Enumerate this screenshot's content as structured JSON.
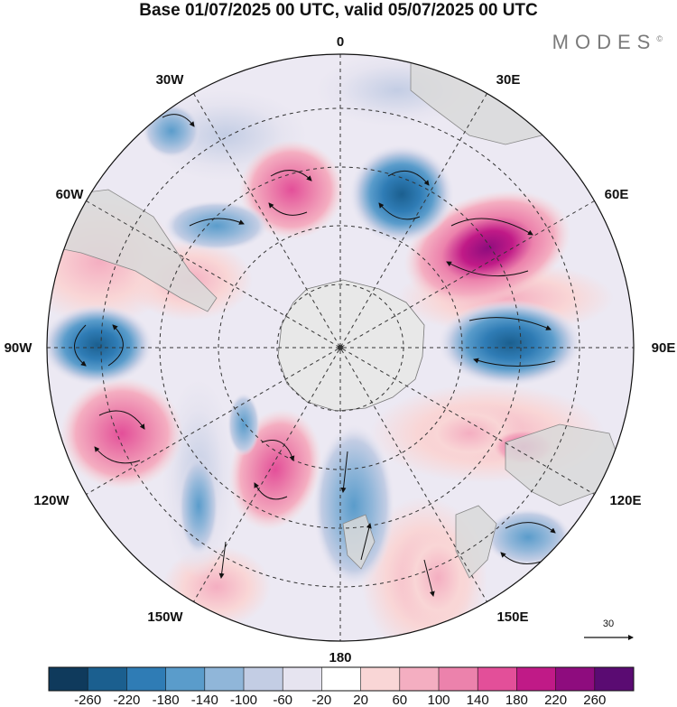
{
  "title": "Base 01/07/2025 00 UTC, valid 05/07/2025 00 UTC",
  "brand": "MODES",
  "brand_mark": "©",
  "longitude_labels": {
    "top": "0",
    "bottom": "180",
    "left": "90W",
    "right": "90E",
    "upper_left_30": "30W",
    "upper_left_60": "60W",
    "upper_right_30": "30E",
    "upper_right_60": "60E",
    "lower_left_120": "120W",
    "lower_left_150": "150W",
    "lower_right_120": "120E",
    "lower_right_150": "150E"
  },
  "vector_scale": {
    "label": "30"
  },
  "colorbar": {
    "ticks": [
      "-260",
      "-220",
      "-180",
      "-140",
      "-100",
      "-60",
      "-20",
      "20",
      "60",
      "100",
      "140",
      "180",
      "220",
      "260"
    ],
    "colors": [
      "#0f3a5c",
      "#1b5f8f",
      "#2f7cb5",
      "#5a9ccb",
      "#90b6d9",
      "#c3cde4",
      "#e6e4f0",
      "#ffffff",
      "#f9d6d6",
      "#f4aec1",
      "#ec82ac",
      "#e34f99",
      "#c01a87",
      "#8e0c7e",
      "#5a0b72"
    ]
  },
  "map_colors": {
    "land": "#d9d9d9",
    "antarctica": "#e8e8e8",
    "grid": "#333333",
    "vector": "#111111"
  }
}
